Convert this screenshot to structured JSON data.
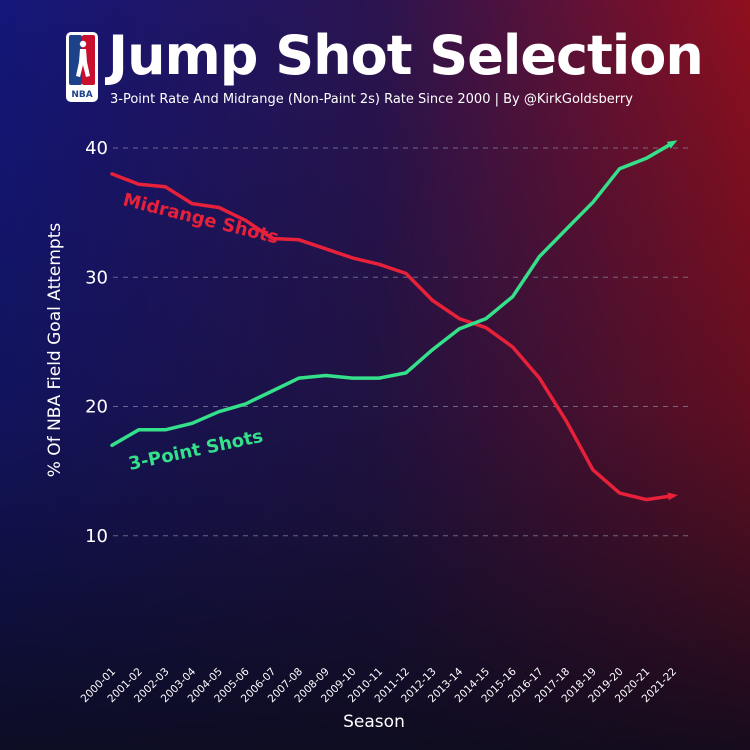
{
  "header": {
    "title": "Jump Shot Selection",
    "subtitle": "3-Point Rate And Midrange (Non-Paint 2s) Rate Since 2000 | By @KirkGoldsberry",
    "logo_text": "NBA"
  },
  "colors": {
    "background_left": "#14167a",
    "background_right": "#8f0f1e",
    "background_bottom": "#0d0d24",
    "midrange": "#e8213a",
    "three_point": "#34e08a",
    "grid": "#8a8aa8",
    "text": "#ffffff"
  },
  "chart_data": {
    "type": "line",
    "xlabel": "Season",
    "ylabel": "% Of NBA Field Goal Attempts",
    "ylim": [
      0,
      40
    ],
    "yticks": [
      10,
      20,
      30,
      40
    ],
    "grid": true,
    "categories": [
      "2000-01",
      "2001-02",
      "2002-03",
      "2003-04",
      "2004-05",
      "2005-06",
      "2006-07",
      "2007-08",
      "2008-09",
      "2009-10",
      "2010-11",
      "2011-12",
      "2012-13",
      "2013-14",
      "2014-15",
      "2015-16",
      "2016-17",
      "2017-18",
      "2018-19",
      "2019-20",
      "2020-21",
      "2021-22"
    ],
    "series": [
      {
        "name": "Midrange Shots",
        "values": [
          38.0,
          37.2,
          37.0,
          35.7,
          35.4,
          34.4,
          33.0,
          32.9,
          32.2,
          31.5,
          31.0,
          30.3,
          28.2,
          26.8,
          26.1,
          24.6,
          22.2,
          18.9,
          15.1,
          13.3,
          12.8,
          13.1
        ]
      },
      {
        "name": "3-Point Shots",
        "values": [
          17.0,
          18.2,
          18.2,
          18.7,
          19.6,
          20.2,
          21.2,
          22.2,
          22.4,
          22.2,
          22.2,
          22.6,
          24.4,
          26.0,
          26.8,
          28.5,
          31.6,
          33.7,
          35.8,
          38.4,
          39.2,
          40.4
        ]
      }
    ]
  }
}
